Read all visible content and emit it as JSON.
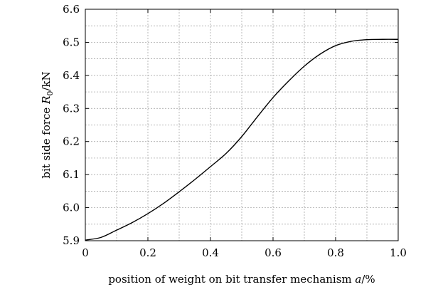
{
  "chart_data": {
    "type": "line",
    "title": "",
    "xlabel": {
      "prefix": "position of weight on bit transfer mechanism ",
      "variable": "a",
      "unit": "/%"
    },
    "ylabel": {
      "prefix": "bit side force ",
      "variable": "R",
      "subscript": "0",
      "unit": "/kN"
    },
    "xlim": [
      0,
      1.0
    ],
    "ylim": [
      5.9,
      6.6
    ],
    "x_ticks": [
      {
        "value": 0,
        "label": "0"
      },
      {
        "value": 0.2,
        "label": "0.2"
      },
      {
        "value": 0.4,
        "label": "0.4"
      },
      {
        "value": 0.6,
        "label": "0.6"
      },
      {
        "value": 0.8,
        "label": "0.8"
      },
      {
        "value": 1.0,
        "label": "1.0"
      }
    ],
    "y_ticks": [
      {
        "value": 5.9,
        "label": "5.9"
      },
      {
        "value": 6.0,
        "label": "6.0"
      },
      {
        "value": 6.1,
        "label": "6.1"
      },
      {
        "value": 6.2,
        "label": "6.2"
      },
      {
        "value": 6.3,
        "label": "6.3"
      },
      {
        "value": 6.4,
        "label": "6.4"
      },
      {
        "value": 6.5,
        "label": "6.5"
      },
      {
        "value": 6.6,
        "label": "6.6"
      }
    ],
    "x_minor_step": 0.1,
    "y_minor_step": 0.05,
    "grid": true,
    "series": [
      {
        "color": "#000000",
        "x": [
          0,
          0.05,
          0.1,
          0.15,
          0.2,
          0.25,
          0.3,
          0.35,
          0.4,
          0.45,
          0.5,
          0.55,
          0.6,
          0.65,
          0.7,
          0.75,
          0.8,
          0.85,
          0.9,
          0.95,
          1.0
        ],
        "y": [
          5.902,
          5.91,
          5.932,
          5.955,
          5.982,
          6.013,
          6.048,
          6.085,
          6.124,
          6.164,
          6.215,
          6.275,
          6.333,
          6.383,
          6.428,
          6.464,
          6.49,
          6.503,
          6.508,
          6.509,
          6.509
        ]
      }
    ]
  }
}
